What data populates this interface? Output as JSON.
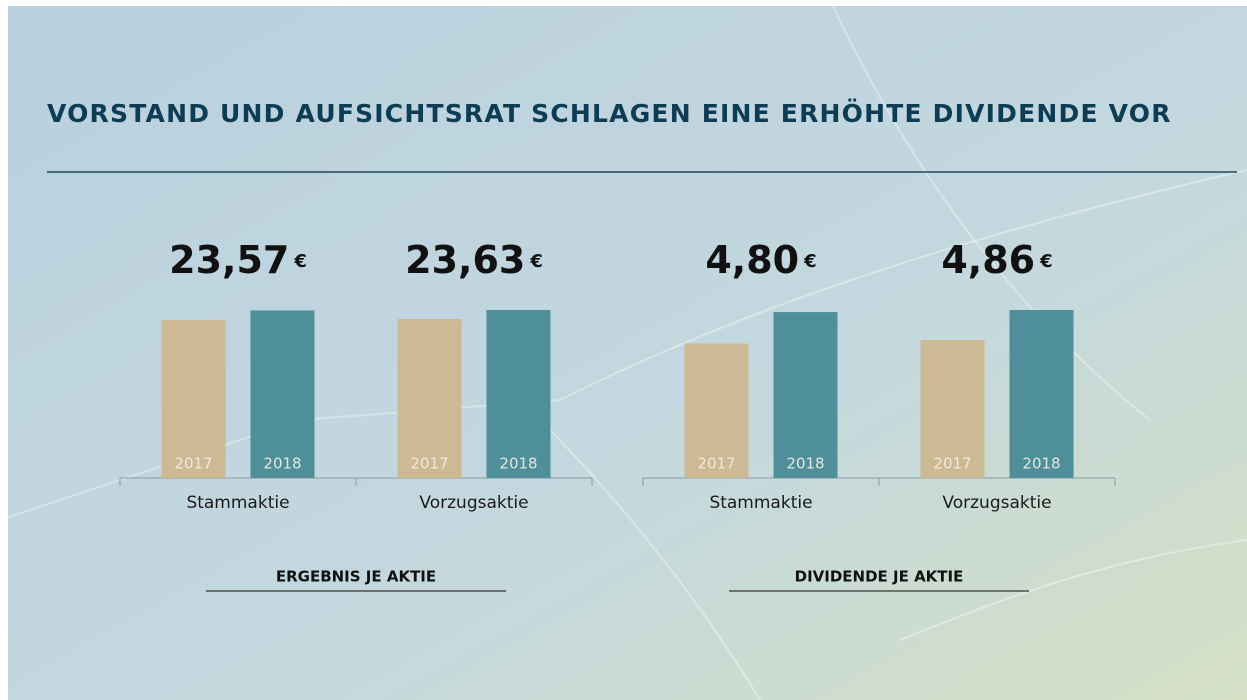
{
  "title": "VORSTAND UND AUFSICHTSRAT SCHLAGEN EINE ERHÖHTE DIVIDENDE VOR",
  "chart_data": [
    {
      "type": "bar",
      "title": "ERGEBNIS JE AKTIE",
      "unit": "€",
      "categories": [
        "Stammaktie",
        "Vorzugsaktie"
      ],
      "series": [
        {
          "name": "2017",
          "color": "#cdb993",
          "values": [
            22.22,
            22.36
          ]
        },
        {
          "name": "2018",
          "color": "#4e8f9a",
          "values": [
            23.57,
            23.63
          ],
          "value_labels": [
            "23,57",
            "23,63"
          ]
        }
      ]
    },
    {
      "type": "bar",
      "title": "DIVIDENDE JE AKTIE",
      "unit": "€",
      "categories": [
        "Stammaktie",
        "Vorzugsaktie"
      ],
      "series": [
        {
          "name": "2017",
          "color": "#cdb993",
          "values": [
            3.89,
            3.99
          ]
        },
        {
          "name": "2018",
          "color": "#4e8f9a",
          "values": [
            4.8,
            4.86
          ],
          "value_labels": [
            "4,80",
            "4,86"
          ]
        }
      ]
    }
  ]
}
